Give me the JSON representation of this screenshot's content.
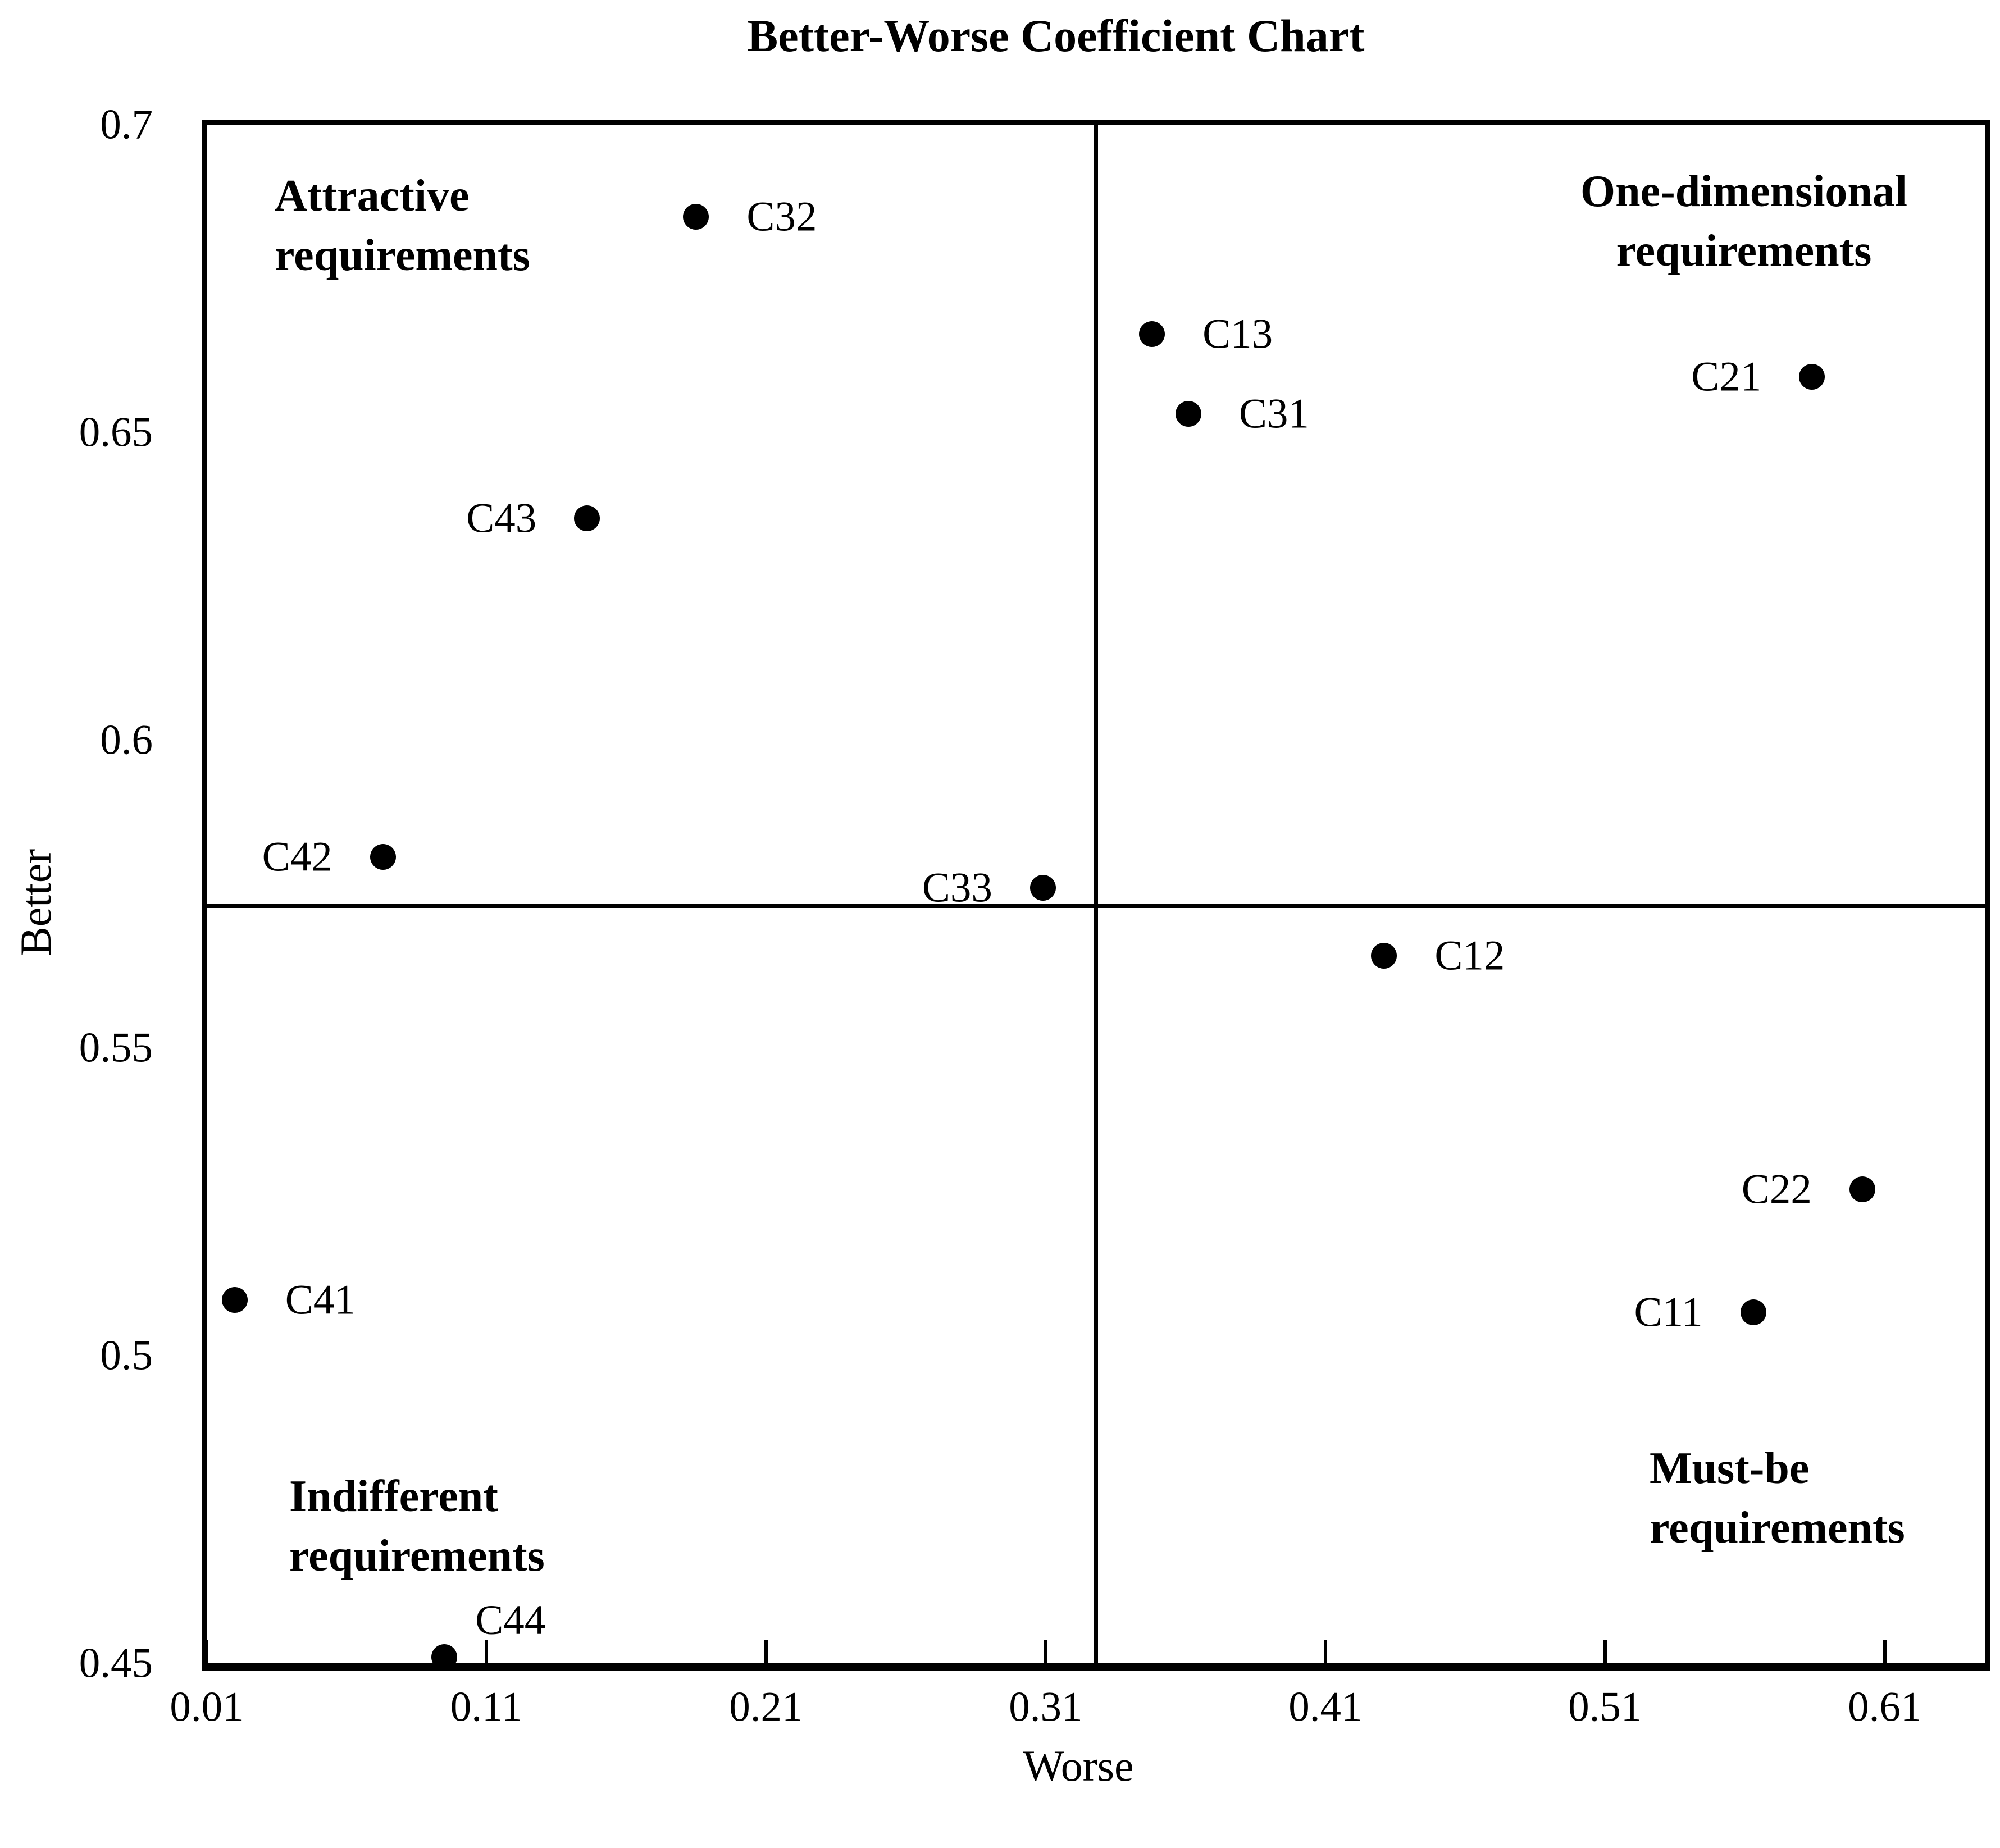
{
  "chart_data": {
    "type": "scatter",
    "title": "Better-Worse Coefficient Chart",
    "xlabel": "Worse",
    "ylabel": "Better",
    "xlim": [
      0.01,
      0.646
    ],
    "ylim": [
      0.45,
      0.7
    ],
    "x_ticks": [
      0.01,
      0.11,
      0.21,
      0.31,
      0.41,
      0.51,
      0.61
    ],
    "x_tick_labels": [
      "0.01",
      "0.11",
      "0.21",
      "0.31",
      "0.41",
      "0.51",
      "0.61"
    ],
    "y_ticks": [
      0.7,
      0.65,
      0.6,
      0.55,
      0.5,
      0.45
    ],
    "y_tick_labels": [
      "0.7",
      "0.65",
      "0.6",
      "0.55",
      "0.5",
      "0.45"
    ],
    "grid": false,
    "legend": false,
    "quadrant_divider": {
      "x": 0.328,
      "y": 0.573
    },
    "points": [
      {
        "label": "C32",
        "x": 0.185,
        "y": 0.685,
        "label_side": "right"
      },
      {
        "label": "C13",
        "x": 0.348,
        "y": 0.666,
        "label_side": "right"
      },
      {
        "label": "C31",
        "x": 0.361,
        "y": 0.653,
        "label_side": "right"
      },
      {
        "label": "C21",
        "x": 0.584,
        "y": 0.659,
        "label_side": "left"
      },
      {
        "label": "C43",
        "x": 0.146,
        "y": 0.636,
        "label_side": "left"
      },
      {
        "label": "C42",
        "x": 0.073,
        "y": 0.581,
        "label_side": "left"
      },
      {
        "label": "C33",
        "x": 0.309,
        "y": 0.576,
        "label_side": "left"
      },
      {
        "label": "C12",
        "x": 0.431,
        "y": 0.565,
        "label_side": "right"
      },
      {
        "label": "C22",
        "x": 0.602,
        "y": 0.527,
        "label_side": "left"
      },
      {
        "label": "C11",
        "x": 0.563,
        "y": 0.507,
        "label_side": "left"
      },
      {
        "label": "C41",
        "x": 0.02,
        "y": 0.509,
        "label_side": "right"
      },
      {
        "label": "C44",
        "x": 0.095,
        "y": 0.451,
        "label_side": "above-right"
      }
    ],
    "quadrant_labels": [
      {
        "lines": [
          "Attractive",
          "requirements"
        ],
        "position": "top-left"
      },
      {
        "lines": [
          "One-dimensional",
          "requirements"
        ],
        "position": "top-right"
      },
      {
        "lines": [
          "Indifferent",
          "requirements"
        ],
        "position": "bottom-left"
      },
      {
        "lines": [
          "Must-be",
          "requirements"
        ],
        "position": "bottom-right"
      }
    ],
    "colors": {
      "point": "#000000",
      "line": "#000000",
      "text": "#000000",
      "background": "#ffffff"
    }
  }
}
